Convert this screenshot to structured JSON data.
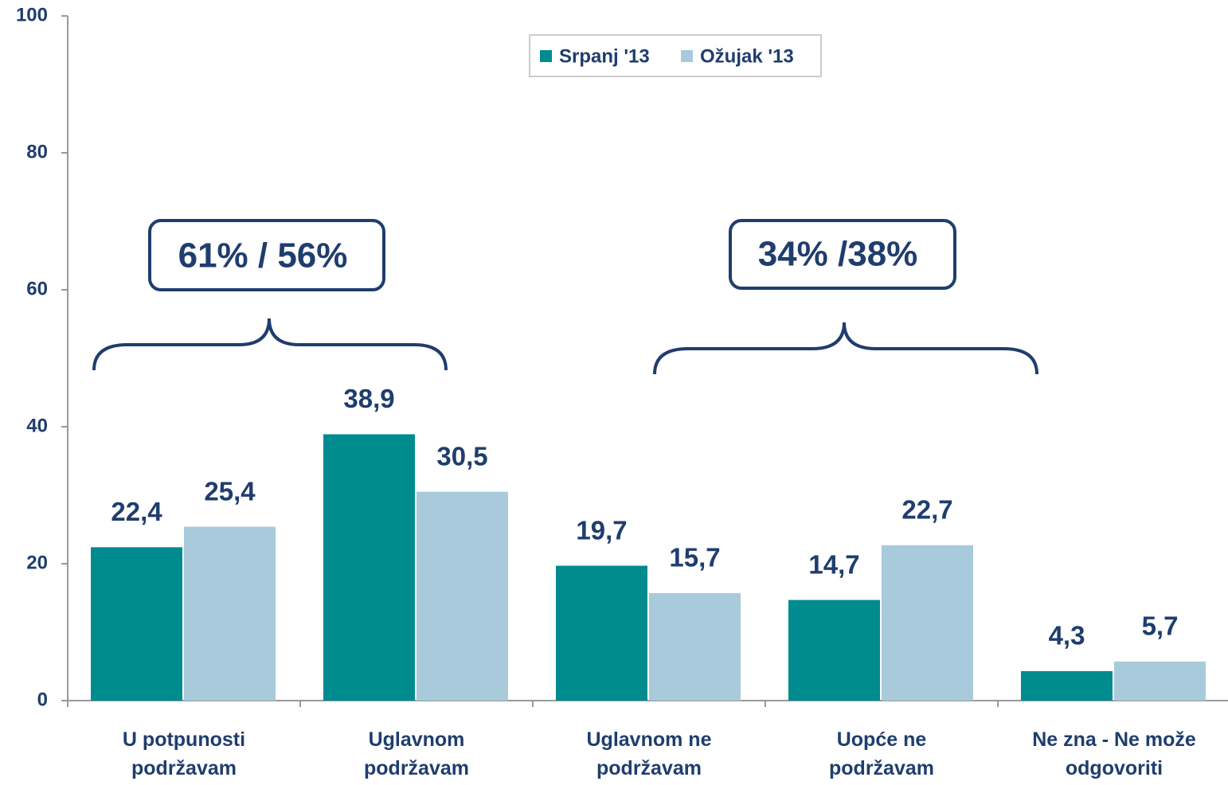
{
  "chart_data": {
    "type": "bar",
    "categories": [
      "U potpunosti podržavam",
      "Uglavnom podržavam",
      "Uglavnom ne podržavam",
      "Uopće ne podržavam",
      "Ne zna - Ne može odgovoriti"
    ],
    "series": [
      {
        "name": "Srpanj '13",
        "color": "#008b8e",
        "values": [
          22.4,
          38.9,
          19.7,
          14.7,
          4.3
        ],
        "value_labels": [
          "22,4",
          "38,9",
          "19,7",
          "14,7",
          "4,3"
        ]
      },
      {
        "name": "Ožujak '13",
        "color": "#a8cadb",
        "values": [
          25.4,
          30.5,
          15.7,
          22.7,
          5.7
        ],
        "value_labels": [
          "25,4",
          "30,5",
          "15,7",
          "22,7",
          "5,7"
        ]
      }
    ],
    "ylim": [
      0,
      100
    ],
    "yticks": [
      0,
      20,
      40,
      60,
      80,
      100
    ],
    "annotations": [
      "61% / 56%",
      "34% /38%"
    ],
    "legend": "top"
  }
}
